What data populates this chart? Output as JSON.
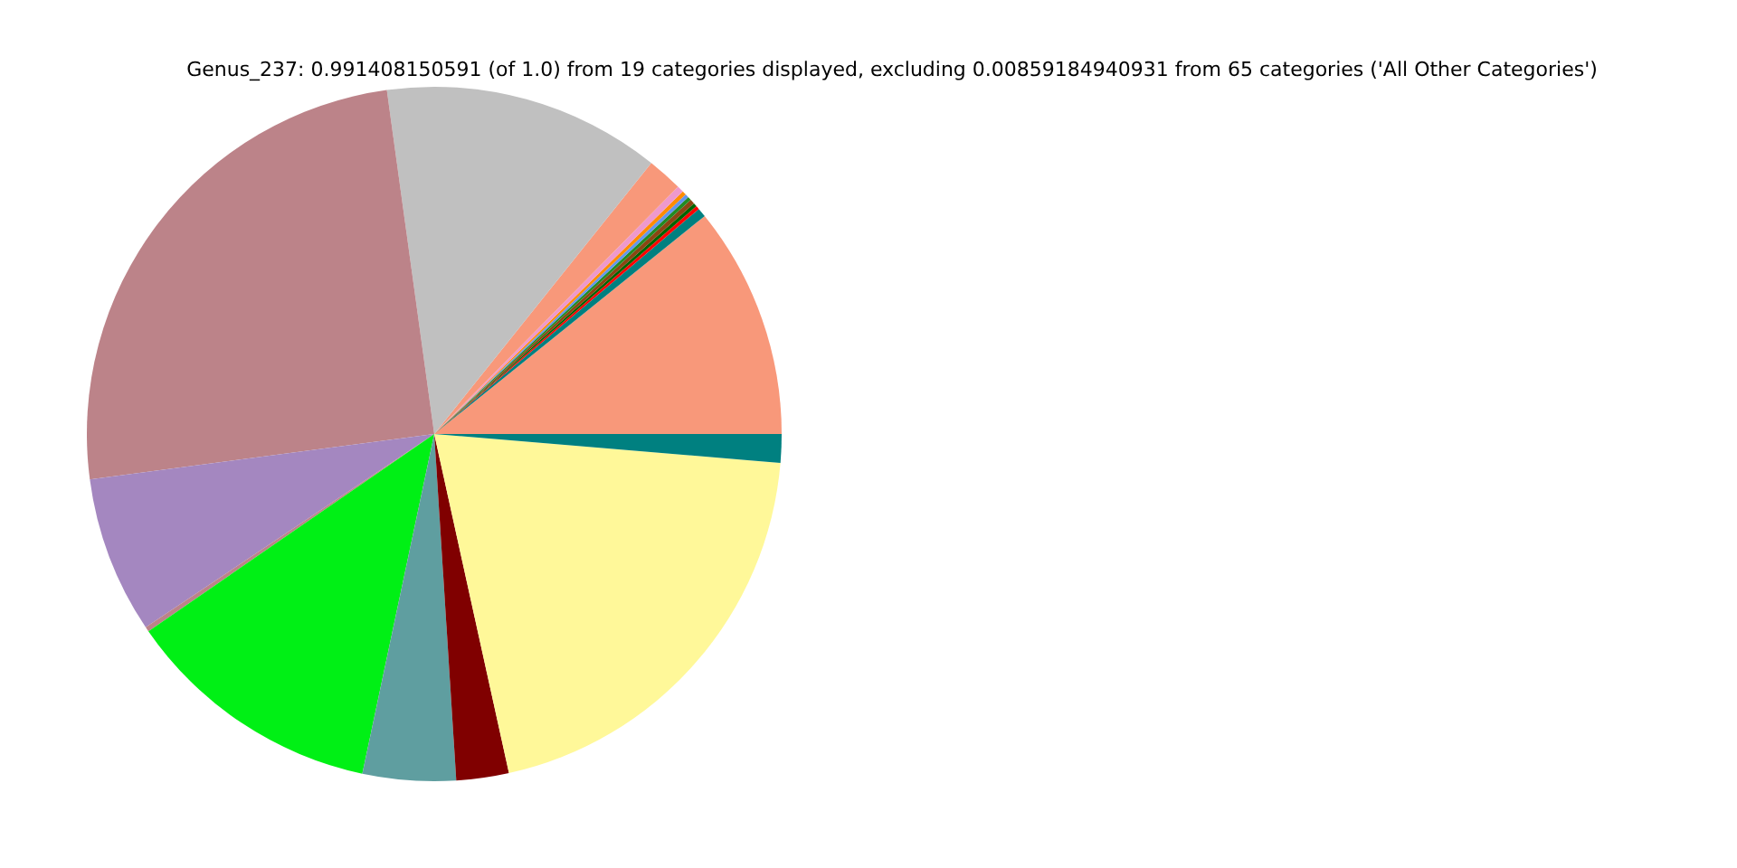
{
  "chart_data": {
    "type": "pie",
    "title": "Genus_237: 0.991408150591 (of 1.0) from 19 categories displayed, excluding 0.00859184940931 from 65 categories ('All Other Categories')",
    "categories": [
      null,
      null,
      null,
      null,
      null,
      null,
      null,
      null,
      null,
      null,
      null,
      null,
      null,
      null,
      null,
      null,
      null,
      null,
      null
    ],
    "values": [
      10.8,
      0.42,
      0.17,
      0.17,
      0.22,
      0.17,
      0.17,
      0.19,
      0.31,
      1.64,
      12.92,
      24.91,
      7.31,
      0.22,
      12.06,
      4.33,
      2.44,
      20.22,
      1.33
    ],
    "colors": [
      "#f8987a",
      "#008080",
      "#ff0000",
      "#006400",
      "#8b4513",
      "#228b22",
      "#6495ed",
      "#ff8c00",
      "#ee99cc",
      "#f8987a",
      "#c0c0c0",
      "#bc8389",
      "#a487c0",
      "#bc8389",
      "#00f015",
      "#5f9ea0",
      "#800000",
      "#fff899",
      "#008080"
    ]
  }
}
